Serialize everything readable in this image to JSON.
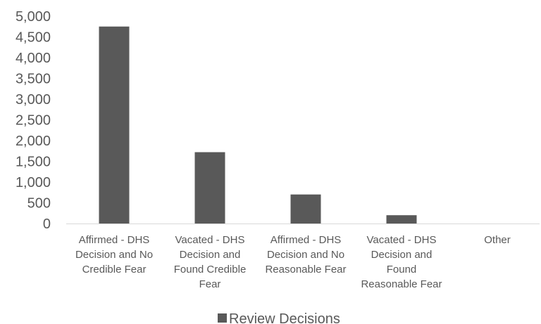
{
  "chart_data": {
    "type": "bar",
    "categories": [
      [
        "Affirmed - DHS",
        "Decision and No",
        "Credible Fear"
      ],
      [
        "Vacated - DHS",
        "Decision and",
        "Found Credible",
        "Fear"
      ],
      [
        "Affirmed - DHS",
        "Decision and No",
        "Reasonable Fear"
      ],
      [
        "Vacated - DHS",
        "Decision and",
        "Found",
        "Reasonable Fear"
      ],
      [
        "Other"
      ]
    ],
    "series": [
      {
        "name": "Review Decisions",
        "values": [
          4750,
          1720,
          700,
          200,
          0
        ]
      }
    ],
    "yticks": [
      "0",
      "500",
      "1,000",
      "1,500",
      "2,000",
      "2,500",
      "3,000",
      "3,500",
      "4,000",
      "4,500",
      "5,000"
    ],
    "ylim": [
      0,
      5000
    ],
    "bar_color": "#595959",
    "axis_color": "#d9d9d9",
    "legend": {
      "position": "bottom"
    }
  }
}
